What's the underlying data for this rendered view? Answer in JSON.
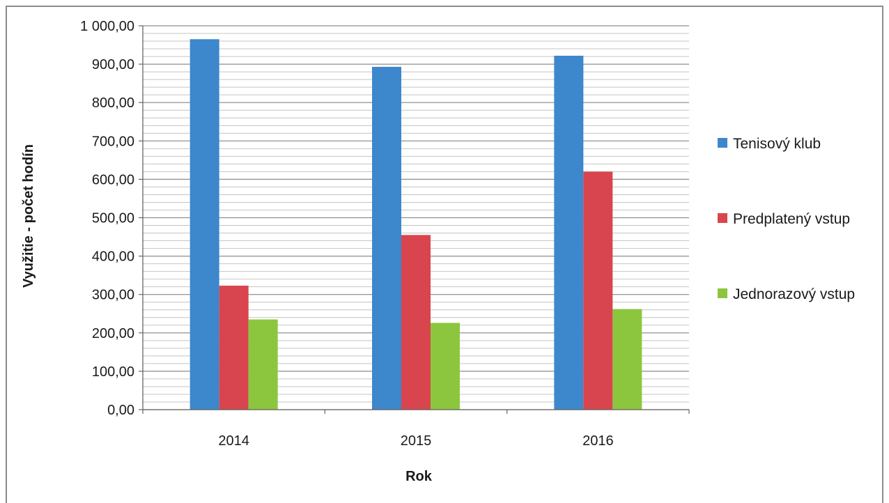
{
  "chart_data": {
    "type": "bar",
    "title": "",
    "xlabel": "Rok",
    "ylabel": "Využitie - počet hodín",
    "categories": [
      "2014",
      "2015",
      "2016"
    ],
    "series": [
      {
        "name": "Tenisový klub",
        "color": "#3d87cc",
        "values": [
          965,
          893,
          922
        ]
      },
      {
        "name": "Predplatený vstup",
        "color": "#d9454e",
        "values": [
          323,
          455,
          620
        ]
      },
      {
        "name": "Jednorazový vstup",
        "color": "#8cc63e",
        "values": [
          235,
          226,
          262
        ]
      }
    ],
    "ylim": [
      0,
      1000
    ],
    "y_ticks": [
      {
        "value": 0,
        "label": "0,00"
      },
      {
        "value": 100,
        "label": "100,00"
      },
      {
        "value": 200,
        "label": "200,00"
      },
      {
        "value": 300,
        "label": "300,00"
      },
      {
        "value": 400,
        "label": "400,00"
      },
      {
        "value": 500,
        "label": "500,00"
      },
      {
        "value": 600,
        "label": "600,00"
      },
      {
        "value": 700,
        "label": "700,00"
      },
      {
        "value": 800,
        "label": "800,00"
      },
      {
        "value": 900,
        "label": "900,00"
      },
      {
        "value": 1000,
        "label": "1 000,00"
      }
    ],
    "minor_grid_step": 20,
    "grid": true,
    "legend_position": "right"
  }
}
